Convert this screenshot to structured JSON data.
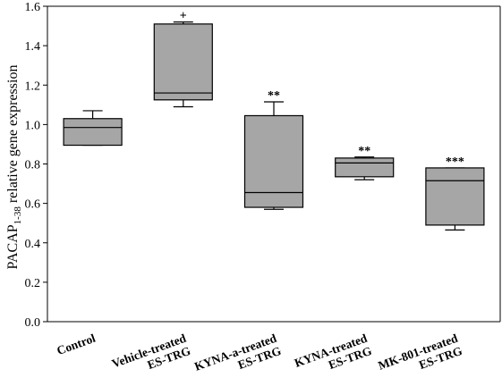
{
  "chart_data": {
    "type": "box",
    "ylabel_main": "PACAP",
    "ylabel_sub": "1-38",
    "ylabel_rest": " relative gene expression",
    "ylim": [
      0.0,
      1.6
    ],
    "yticks": [
      "0.0",
      "0.2",
      "0.4",
      "0.6",
      "0.8",
      "1.0",
      "1.2",
      "1.4",
      "1.6"
    ],
    "grid": false,
    "box_color": "#a6a6a6",
    "categories": [
      {
        "lines": [
          "Control"
        ],
        "whisker_low": 0.895,
        "q1": 0.895,
        "median": 0.985,
        "q3": 1.03,
        "whisker_high": 1.07,
        "marker": ""
      },
      {
        "lines": [
          "Vehicle-treated",
          "ES-TRG"
        ],
        "whisker_low": 1.09,
        "q1": 1.125,
        "median": 1.16,
        "q3": 1.51,
        "whisker_high": 1.52,
        "marker": "+"
      },
      {
        "lines": [
          "KYNA-a-treated",
          "ES-TRG"
        ],
        "whisker_low": 0.57,
        "q1": 0.58,
        "median": 0.655,
        "q3": 1.045,
        "whisker_high": 1.115,
        "marker": "**"
      },
      {
        "lines": [
          "KYNA-treated",
          "ES-TRG"
        ],
        "whisker_low": 0.72,
        "q1": 0.735,
        "median": 0.805,
        "q3": 0.83,
        "whisker_high": 0.835,
        "marker": "**"
      },
      {
        "lines": [
          "MK-801-treated",
          "ES-TRG"
        ],
        "whisker_low": 0.465,
        "q1": 0.49,
        "median": 0.715,
        "q3": 0.78,
        "whisker_high": 0.78,
        "marker": "***"
      }
    ]
  }
}
